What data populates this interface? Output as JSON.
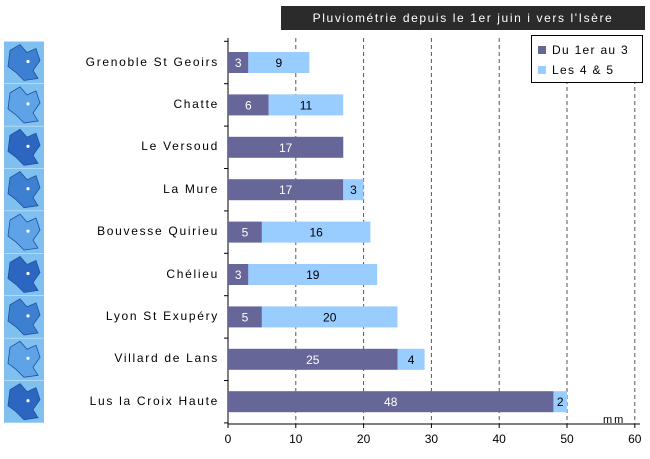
{
  "chart_data": {
    "type": "bar",
    "orientation": "horizontal",
    "stacked": true,
    "title": "Pluviométrie depuis le 1er juin i vers l'Isère",
    "unit": "mm",
    "categories": [
      "Grenoble St Geoirs",
      "Chatte",
      "Le Versoud",
      "La Mure",
      "Bouvesse Quirieu",
      "Chélieu",
      "Lyon St Exupéry",
      "Villard de Lans",
      "Lus la Croix Haute"
    ],
    "series": [
      {
        "name": "Du 1er au 3",
        "color": "#666699",
        "values": [
          3,
          6,
          17,
          17,
          5,
          3,
          5,
          25,
          48
        ],
        "labels": [
          "3",
          "6",
          "17",
          "17",
          "5",
          "3",
          "5",
          "25",
          "48"
        ]
      },
      {
        "name": "Les 4 & 5",
        "color": "#99ccff",
        "values": [
          9,
          11,
          0,
          3,
          16,
          19,
          20,
          4,
          2
        ],
        "labels": [
          "9",
          "11",
          "",
          "3",
          "16",
          "19",
          "20",
          "4",
          "2"
        ]
      }
    ],
    "xlim": [
      0,
      60
    ],
    "ticks": [
      "0",
      "10",
      "20",
      "30",
      "40",
      "50",
      "60"
    ],
    "grid": "vertical dashed",
    "legend_position": "top-right"
  }
}
